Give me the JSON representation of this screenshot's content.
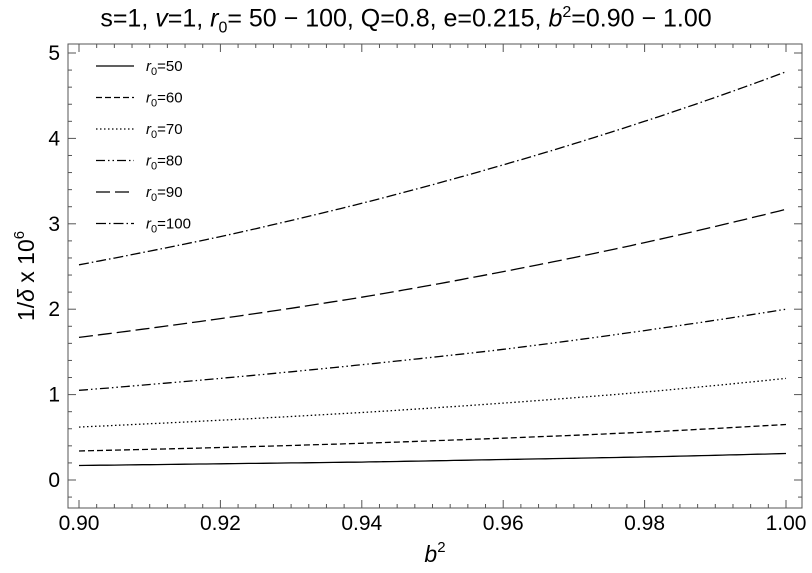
{
  "title_parts": {
    "p1": "s=1, ",
    "v": "v",
    "p2": "=1, ",
    "r": "r",
    "r_sub": "0",
    "p3": "= 50 − 100, Q=0.8, e=0.215, ",
    "b": "b",
    "b_sup": "2",
    "p4": "=0.90 − 1.00"
  },
  "chart_data": {
    "type": "line",
    "title": "s=1, v=1, r0= 50 − 100, Q=0.8, e=0.215, b2=0.90 − 1.00",
    "xlabel": "b2",
    "ylabel": "1/δ x 10^6",
    "xlim": [
      0.9,
      1.0
    ],
    "ylim": [
      -0.25,
      5.0
    ],
    "xticks": [
      "0.90",
      "0.92",
      "0.94",
      "0.96",
      "0.98",
      "1.00"
    ],
    "yticks": [
      "0",
      "1",
      "2",
      "3",
      "4",
      "5"
    ],
    "x": [
      0.9,
      0.92,
      0.94,
      0.96,
      0.98,
      1.0
    ],
    "legend_position": "top-left",
    "grid": false,
    "series": [
      {
        "name": "r0=50",
        "label_main": "r",
        "label_sub": "0",
        "label_tail": "=50",
        "dash": "solid",
        "values": [
          0.17,
          0.19,
          0.21,
          0.24,
          0.27,
          0.31
        ]
      },
      {
        "name": "r0=60",
        "label_main": "r",
        "label_sub": "0",
        "label_tail": "=60",
        "dash": "dashed",
        "values": [
          0.34,
          0.38,
          0.43,
          0.49,
          0.56,
          0.65
        ]
      },
      {
        "name": "r0=70",
        "label_main": "r",
        "label_sub": "0",
        "label_tail": "=70",
        "dash": "dotted",
        "values": [
          0.62,
          0.7,
          0.79,
          0.9,
          1.03,
          1.19
        ]
      },
      {
        "name": "r0=80",
        "label_main": "r",
        "label_sub": "0",
        "label_tail": "=80",
        "dash": "dashdotdot",
        "values": [
          1.05,
          1.19,
          1.35,
          1.53,
          1.75,
          2.0
        ]
      },
      {
        "name": "r0=90",
        "label_main": "r",
        "label_sub": "0",
        "label_tail": "=90",
        "dash": "longdash",
        "values": [
          1.67,
          1.89,
          2.14,
          2.44,
          2.78,
          3.17
        ]
      },
      {
        "name": "r0=100",
        "label_main": "r",
        "label_sub": "0",
        "label_tail": "=100",
        "dash": "dashdot",
        "values": [
          2.52,
          2.85,
          3.24,
          3.69,
          4.2,
          4.78
        ]
      }
    ]
  }
}
